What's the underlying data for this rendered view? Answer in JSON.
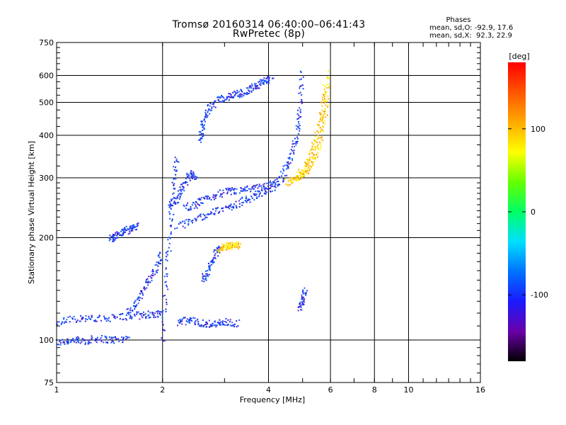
{
  "title_line1": "Tromsø 20160314 06:40:00–06:41:43",
  "title_line2": "RwPretec (8p)",
  "phase_box": {
    "heading": "Phases",
    "line_o": "mean, sd,O: -92.9, 17.6",
    "line_x": "mean, sd,X:  92.3, 22.9"
  },
  "colorbar": {
    "label": "[deg]",
    "ticks": [
      {
        "value": 100,
        "label": "100"
      },
      {
        "value": 0,
        "label": "0"
      },
      {
        "value": -100,
        "label": "-100"
      }
    ],
    "range": [
      -180,
      180
    ],
    "colors": [
      "#000000",
      "#6a00a8",
      "#1a1aff",
      "#0072ff",
      "#00e0ff",
      "#00ff66",
      "#66ff00",
      "#ffff00",
      "#ffaa00",
      "#ff5500",
      "#ff0000"
    ]
  },
  "chart_data": {
    "type": "scatter",
    "title": "Tromsø 20160314 06:40:00–06:41:43",
    "subtitle": "RwPretec (8p)",
    "xlabel": "Frequency [MHz]",
    "ylabel": "Stationary phase Virtual Height [km]",
    "x_scale": "log",
    "y_scale": "log",
    "xlim": [
      1,
      16
    ],
    "ylim": [
      75,
      750
    ],
    "x_ticks": [
      {
        "value": 1,
        "label": "1"
      },
      {
        "value": 2,
        "label": "2"
      },
      {
        "value": 4,
        "label": "4"
      },
      {
        "value": 6,
        "label": "6"
      },
      {
        "value": 8,
        "label": "8"
      },
      {
        "value": 10,
        "label": "10"
      },
      {
        "value": 16,
        "label": "16"
      }
    ],
    "y_ticks": [
      {
        "value": 75,
        "label": "75"
      },
      {
        "value": 100,
        "label": "100"
      },
      {
        "value": 200,
        "label": "200"
      },
      {
        "value": 300,
        "label": "300"
      },
      {
        "value": 400,
        "label": "400"
      },
      {
        "value": 500,
        "label": "500"
      },
      {
        "value": 600,
        "label": "600"
      },
      {
        "value": 750,
        "label": "750"
      }
    ],
    "x_gridlines": [
      2,
      4,
      6,
      8,
      10
    ],
    "y_gridlines": [
      100,
      200,
      300,
      400,
      500,
      600
    ],
    "grid": true,
    "series": [
      {
        "mode": "O",
        "color_hint": "blue",
        "segments": [
          {
            "x": [
              1.0,
              1.1,
              1.2,
              1.3,
              1.45,
              1.6
            ],
            "y": [
              98,
              100,
              99,
              101,
              100,
              101
            ]
          },
          {
            "x": [
              1.0,
              1.15,
              1.3,
              1.5,
              1.7,
              1.85,
              2.0
            ],
            "y": [
              113,
              116,
              115,
              117,
              118,
              119,
              120
            ]
          },
          {
            "x": [
              1.42,
              1.48,
              1.55,
              1.62,
              1.7
            ],
            "y": [
              198,
              203,
              208,
              212,
              218
            ]
          },
          {
            "x": [
              1.6,
              1.7,
              1.8,
              1.9,
              2.0
            ],
            "y": [
              120,
              130,
              145,
              160,
              180
            ]
          },
          {
            "x": [
              2.0,
              2.05,
              2.1,
              2.15,
              2.2
            ],
            "y": [
              100,
              150,
              210,
              280,
              350
            ]
          },
          {
            "x": [
              2.1,
              2.2,
              2.3,
              2.4,
              2.5
            ],
            "y": [
              250,
              260,
              285,
              310,
              300
            ]
          },
          {
            "x": [
              2.2,
              2.5,
              2.8,
              3.1,
              3.4,
              3.7,
              4.0,
              4.3
            ],
            "y": [
              215,
              228,
              238,
              246,
              256,
              266,
              276,
              292
            ]
          },
          {
            "x": [
              2.3,
              2.5,
              2.7,
              3.0,
              3.3,
              3.6,
              4.0,
              4.5
            ],
            "y": [
              245,
              250,
              262,
              272,
              275,
              278,
              285,
              300
            ]
          },
          {
            "x": [
              2.55,
              2.6,
              2.7,
              2.9,
              3.1,
              3.3,
              3.5,
              3.7,
              3.9,
              4.1
            ],
            "y": [
              380,
              430,
              480,
              510,
              520,
              530,
              540,
              560,
              575,
              590
            ]
          },
          {
            "x": [
              4.4,
              4.6,
              4.8,
              4.9,
              5.0
            ],
            "y": [
              310,
              340,
              390,
              470,
              620
            ]
          },
          {
            "x": [
              2.2,
              2.4,
              2.6,
              2.8,
              3.0,
              3.3
            ],
            "y": [
              113,
              114,
              112,
              111,
              113,
              112
            ]
          },
          {
            "x": [
              2.6,
              2.7,
              2.8,
              2.9
            ],
            "y": [
              150,
              160,
              175,
              190
            ]
          },
          {
            "x": [
              4.9,
              5.0,
              5.1
            ],
            "y": [
              125,
              130,
              140
            ]
          }
        ]
      },
      {
        "mode": "X",
        "color_hint": "yellow/orange",
        "segments": [
          {
            "x": [
              4.5,
              4.8,
              5.1,
              5.4,
              5.6,
              5.8,
              5.9
            ],
            "y": [
              290,
              298,
              310,
              340,
              380,
              470,
              620
            ]
          },
          {
            "x": [
              4.8,
              5.1,
              5.3,
              5.5,
              5.7,
              5.8
            ],
            "y": [
              300,
              320,
              350,
              400,
              470,
              560
            ]
          },
          {
            "x": [
              2.9,
              3.0,
              3.1,
              3.2,
              3.3
            ],
            "y": [
              185,
              188,
              190,
              189,
              191
            ]
          }
        ]
      }
    ],
    "color_scale": {
      "label": "[deg]",
      "min": -180,
      "max": 180
    }
  }
}
